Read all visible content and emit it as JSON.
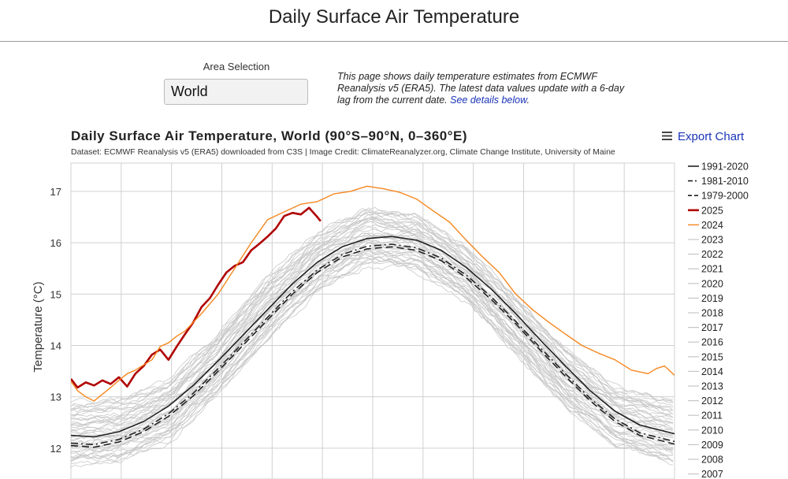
{
  "page": {
    "title": "Daily Surface Air Temperature"
  },
  "controls": {
    "area_label": "Area Selection",
    "area_value": "World"
  },
  "intro": {
    "text": "This page shows daily temperature estimates from ECMWF Reanalysis v5 (ERA5). The latest data values update with a 6-day lag from the current date. ",
    "link_text": "See details below",
    "trailing": "."
  },
  "chart_data": {
    "type": "line",
    "title": "Daily Surface Air Temperature, World (90°S–90°N, 0–360°E)",
    "subtitle": "Dataset: ECMWF Reanalysis v5 (ERA5) downloaded from C3S | Image Credit: ClimateReanalyzer.org, Climate Change Institute, University of Maine",
    "export_label": "Export Chart",
    "xlabel": "",
    "ylabel": "Temperature (°C)",
    "xlim": [
      1,
      366
    ],
    "ylim": [
      11.4,
      17.55
    ],
    "yticks": [
      12,
      13,
      14,
      15,
      16,
      17
    ],
    "grid": true,
    "legend_position": "right",
    "colors": {
      "climatology": "#222222",
      "y2025": "#b00000",
      "y2024": "#f5871f",
      "past_years": "#c6c6c6"
    },
    "series": [
      {
        "name": "1991-2020",
        "style": "solid",
        "x": [
          1,
          15,
          30,
          45,
          60,
          75,
          90,
          105,
          120,
          135,
          150,
          165,
          180,
          195,
          210,
          225,
          240,
          255,
          270,
          285,
          300,
          315,
          330,
          345,
          366
        ],
        "values": [
          12.25,
          12.22,
          12.32,
          12.52,
          12.82,
          13.22,
          13.7,
          14.2,
          14.7,
          15.2,
          15.62,
          15.92,
          16.08,
          16.12,
          16.05,
          15.85,
          15.52,
          15.1,
          14.62,
          14.1,
          13.6,
          13.12,
          12.72,
          12.45,
          12.28
        ]
      },
      {
        "name": "1981-2010",
        "style": "dashdot",
        "x": [
          1,
          15,
          30,
          45,
          60,
          75,
          90,
          105,
          120,
          135,
          150,
          165,
          180,
          195,
          210,
          225,
          240,
          255,
          270,
          285,
          300,
          315,
          330,
          345,
          366
        ],
        "values": [
          12.1,
          12.07,
          12.17,
          12.37,
          12.67,
          13.07,
          13.55,
          14.05,
          14.55,
          15.05,
          15.47,
          15.77,
          15.93,
          15.97,
          15.9,
          15.7,
          15.37,
          14.95,
          14.47,
          13.95,
          13.45,
          12.97,
          12.57,
          12.3,
          12.13
        ]
      },
      {
        "name": "1979-2000",
        "style": "dashed",
        "x": [
          1,
          15,
          30,
          45,
          60,
          75,
          90,
          105,
          120,
          135,
          150,
          165,
          180,
          195,
          210,
          225,
          240,
          255,
          270,
          285,
          300,
          315,
          330,
          345,
          366
        ],
        "values": [
          12.05,
          12.02,
          12.12,
          12.32,
          12.62,
          13.02,
          13.5,
          14.0,
          14.5,
          15.0,
          15.42,
          15.72,
          15.88,
          15.92,
          15.85,
          15.65,
          15.32,
          14.9,
          14.42,
          13.9,
          13.4,
          12.92,
          12.52,
          12.25,
          12.08
        ]
      },
      {
        "name": "2025",
        "style": "solid",
        "x": [
          1,
          5,
          10,
          15,
          20,
          25,
          30,
          35,
          40,
          45,
          50,
          55,
          60,
          65,
          70,
          75,
          80,
          85,
          90,
          95,
          100,
          105,
          110,
          115,
          120,
          125,
          130,
          135,
          140,
          145,
          150,
          152
        ],
        "values": [
          13.35,
          13.18,
          13.28,
          13.22,
          13.32,
          13.25,
          13.38,
          13.2,
          13.45,
          13.6,
          13.82,
          13.92,
          13.72,
          13.98,
          14.22,
          14.45,
          14.75,
          14.92,
          15.18,
          15.42,
          15.55,
          15.62,
          15.85,
          15.98,
          16.12,
          16.28,
          16.52,
          16.58,
          16.55,
          16.68,
          16.5,
          16.42
        ]
      },
      {
        "name": "2024",
        "style": "solid",
        "x": [
          1,
          5,
          10,
          15,
          20,
          25,
          30,
          35,
          40,
          45,
          50,
          55,
          60,
          65,
          70,
          80,
          90,
          100,
          110,
          120,
          130,
          140,
          150,
          160,
          170,
          180,
          190,
          200,
          210,
          220,
          230,
          240,
          250,
          260,
          270,
          280,
          290,
          300,
          310,
          320,
          330,
          340,
          350,
          355,
          360,
          366
        ],
        "values": [
          13.3,
          13.12,
          13.0,
          12.92,
          13.05,
          13.18,
          13.32,
          13.45,
          13.52,
          13.62,
          13.72,
          13.98,
          14.05,
          14.18,
          14.28,
          14.62,
          15.0,
          15.5,
          16.0,
          16.45,
          16.6,
          16.75,
          16.8,
          16.95,
          17.0,
          17.1,
          17.05,
          16.98,
          16.85,
          16.62,
          16.4,
          16.05,
          15.72,
          15.42,
          15.0,
          14.7,
          14.45,
          14.22,
          14.0,
          13.85,
          13.72,
          13.52,
          13.45,
          13.55,
          13.6,
          13.42
        ]
      }
    ],
    "past_years_band": {
      "x": [
        1,
        30,
        60,
        90,
        120,
        150,
        180,
        210,
        240,
        270,
        300,
        330,
        366
      ],
      "low": [
        11.55,
        11.62,
        12.0,
        12.95,
        14.05,
        14.95,
        15.45,
        15.35,
        14.75,
        13.75,
        12.7,
        11.95,
        11.55
      ],
      "high": [
        13.0,
        13.05,
        13.45,
        14.35,
        15.45,
        16.3,
        16.8,
        16.65,
        16.0,
        15.05,
        14.05,
        13.3,
        13.05
      ]
    },
    "legend": [
      "1991-2020",
      "1981-2010",
      "1979-2000",
      "2025",
      "2024",
      "2023",
      "2022",
      "2021",
      "2020",
      "2019",
      "2018",
      "2017",
      "2016",
      "2015",
      "2014",
      "2013",
      "2012",
      "2011",
      "2010",
      "2009",
      "2008",
      "2007"
    ]
  }
}
